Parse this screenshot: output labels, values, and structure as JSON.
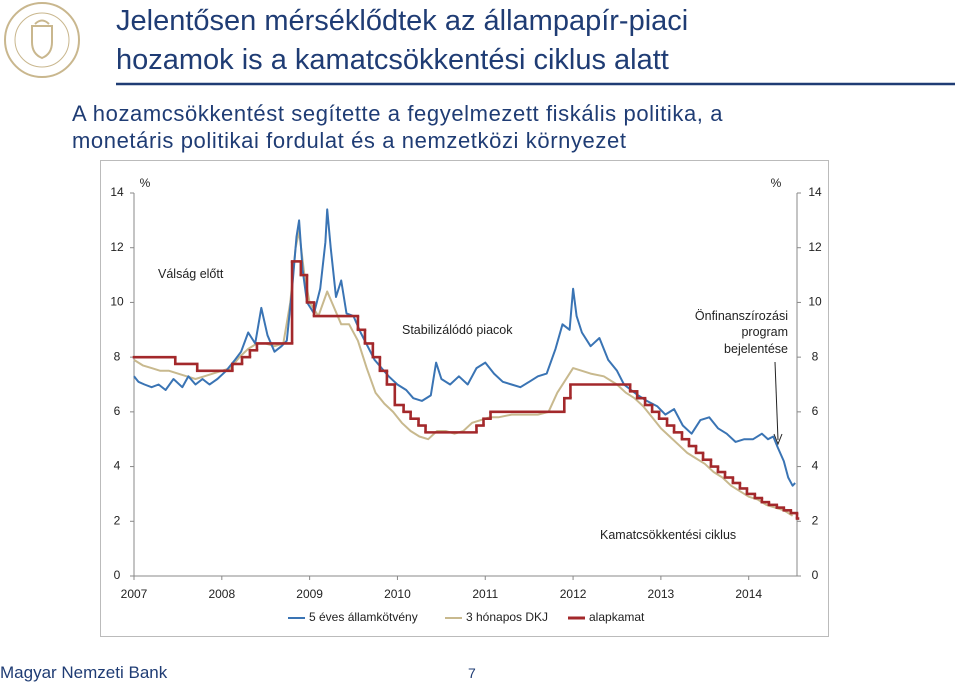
{
  "slide": {
    "title_lines": [
      "Jelentősen mérséklődtek az állampapír-piaci",
      "hozamok is a kamatcsökkentési ciklus alatt"
    ],
    "subtitle_lines": [
      "A hozamcsökkentést segítette a fegyelmezett fiskális politika, a",
      "monetáris politikai fordulat és a nemzetközi környezet"
    ],
    "footer": "Magyar Nemzeti Bank",
    "page_number": 7
  },
  "chart_data": {
    "type": "line",
    "y_unit": "%",
    "y2_unit": "%",
    "xlim": [
      2007,
      2014.55
    ],
    "xticks": [
      2007,
      2008,
      2009,
      2010,
      2011,
      2012,
      2013,
      2014
    ],
    "ylim": [
      0,
      14
    ],
    "yticks": [
      0,
      2,
      4,
      6,
      8,
      10,
      12,
      14
    ],
    "y2lim": [
      0,
      14
    ],
    "y2ticks": [
      0,
      2,
      4,
      6,
      8,
      10,
      12,
      14
    ],
    "grid": false,
    "annotations": [
      {
        "lines": [
          "Válság előtt"
        ]
      },
      {
        "lines": [
          "Stabilizálódó piacok"
        ]
      },
      {
        "lines": [
          "Önfinanszírozási",
          "program",
          "bejelentése"
        ]
      },
      {
        "lines": [
          "Kamatcsökkentési ciklus"
        ]
      }
    ],
    "series": [
      {
        "name": "5 éves államkötvény",
        "color": "#3a74b4",
        "step": false,
        "x": [
          2007.0,
          2007.05,
          2007.12,
          2007.2,
          2007.28,
          2007.36,
          2007.45,
          2007.55,
          2007.62,
          2007.7,
          2007.78,
          2007.86,
          2007.95,
          2008.05,
          2008.15,
          2008.22,
          2008.3,
          2008.38,
          2008.45,
          2008.52,
          2008.6,
          2008.68,
          2008.74,
          2008.8,
          2008.85,
          2008.88,
          2008.92,
          2008.97,
          2009.05,
          2009.12,
          2009.18,
          2009.2,
          2009.24,
          2009.3,
          2009.36,
          2009.42,
          2009.5,
          2009.58,
          2009.66,
          2009.74,
          2009.82,
          2009.9,
          2010.0,
          2010.1,
          2010.18,
          2010.28,
          2010.38,
          2010.44,
          2010.5,
          2010.6,
          2010.7,
          2010.8,
          2010.9,
          2011.0,
          2011.1,
          2011.2,
          2011.3,
          2011.4,
          2011.5,
          2011.6,
          2011.7,
          2011.8,
          2011.88,
          2011.96,
          2012.0,
          2012.04,
          2012.1,
          2012.2,
          2012.3,
          2012.4,
          2012.5,
          2012.58,
          2012.66,
          2012.74,
          2012.84,
          2012.96,
          2013.05,
          2013.15,
          2013.25,
          2013.35,
          2013.45,
          2013.55,
          2013.65,
          2013.75,
          2013.85,
          2013.95,
          2014.05,
          2014.15,
          2014.22,
          2014.28,
          2014.33,
          2014.4,
          2014.45,
          2014.5,
          2014.53
        ],
        "values": [
          7.3,
          7.1,
          7.0,
          6.9,
          7.0,
          6.8,
          7.2,
          6.9,
          7.3,
          7.0,
          7.2,
          7.0,
          7.2,
          7.5,
          7.9,
          8.2,
          8.9,
          8.5,
          9.8,
          8.8,
          8.2,
          8.4,
          8.6,
          10.5,
          12.4,
          13.0,
          11.2,
          10.0,
          9.6,
          10.5,
          12.2,
          13.4,
          12.0,
          10.2,
          10.8,
          9.6,
          9.5,
          8.9,
          8.4,
          7.9,
          7.6,
          7.3,
          7.0,
          6.8,
          6.5,
          6.4,
          6.6,
          7.8,
          7.2,
          7.0,
          7.3,
          7.0,
          7.6,
          7.8,
          7.4,
          7.1,
          7.0,
          6.9,
          7.1,
          7.3,
          7.4,
          8.3,
          9.2,
          9.0,
          10.5,
          9.5,
          8.9,
          8.4,
          8.7,
          7.9,
          7.5,
          7.0,
          6.8,
          6.6,
          6.4,
          6.2,
          5.9,
          6.1,
          5.5,
          5.2,
          5.7,
          5.8,
          5.4,
          5.2,
          4.9,
          5.0,
          5.0,
          5.2,
          5.0,
          5.1,
          4.7,
          4.2,
          3.6,
          3.3,
          3.4
        ]
      },
      {
        "name": "3 hónapos DKJ",
        "color": "#c8b98e",
        "step": false,
        "x": [
          2007.0,
          2007.1,
          2007.2,
          2007.3,
          2007.4,
          2007.5,
          2007.6,
          2007.7,
          2007.8,
          2007.9,
          2008.0,
          2008.1,
          2008.2,
          2008.3,
          2008.4,
          2008.5,
          2008.6,
          2008.7,
          2008.78,
          2008.84,
          2008.88,
          2008.94,
          2009.0,
          2009.1,
          2009.2,
          2009.28,
          2009.36,
          2009.45,
          2009.55,
          2009.65,
          2009.75,
          2009.85,
          2009.95,
          2010.05,
          2010.15,
          2010.25,
          2010.35,
          2010.45,
          2010.55,
          2010.65,
          2010.75,
          2010.85,
          2010.95,
          2011.05,
          2011.15,
          2011.3,
          2011.45,
          2011.6,
          2011.72,
          2011.82,
          2011.9,
          2012.0,
          2012.1,
          2012.2,
          2012.35,
          2012.5,
          2012.6,
          2012.7,
          2012.8,
          2012.9,
          2013.0,
          2013.1,
          2013.2,
          2013.3,
          2013.4,
          2013.5,
          2013.6,
          2013.7,
          2013.8,
          2013.9,
          2014.0,
          2014.1,
          2014.2,
          2014.3,
          2014.4,
          2014.5
        ],
        "values": [
          7.9,
          7.7,
          7.6,
          7.5,
          7.5,
          7.4,
          7.3,
          7.2,
          7.3,
          7.4,
          7.5,
          7.6,
          8.0,
          8.3,
          8.5,
          8.5,
          8.4,
          8.5,
          10.0,
          12.0,
          12.6,
          11.0,
          10.0,
          9.5,
          10.4,
          9.8,
          9.2,
          9.2,
          8.6,
          7.6,
          6.7,
          6.3,
          6.0,
          5.6,
          5.3,
          5.1,
          5.0,
          5.3,
          5.3,
          5.2,
          5.3,
          5.6,
          5.7,
          5.8,
          5.8,
          5.9,
          5.9,
          5.9,
          6.0,
          6.7,
          7.1,
          7.6,
          7.5,
          7.4,
          7.3,
          7.0,
          6.7,
          6.5,
          6.2,
          5.8,
          5.4,
          5.1,
          4.8,
          4.5,
          4.3,
          4.1,
          3.8,
          3.6,
          3.3,
          3.1,
          2.9,
          2.8,
          2.6,
          2.5,
          2.4,
          2.2
        ]
      },
      {
        "name": "alapkamat",
        "color": "#a3282b",
        "step": true,
        "x": [
          2007.0,
          2007.47,
          2007.72,
          2008.12,
          2008.23,
          2008.32,
          2008.4,
          2008.8,
          2008.9,
          2008.97,
          2009.05,
          2009.55,
          2009.63,
          2009.72,
          2009.8,
          2009.88,
          2009.97,
          2010.07,
          2010.15,
          2010.24,
          2010.32,
          2010.9,
          2010.98,
          2011.06,
          2011.9,
          2011.97,
          2012.65,
          2012.73,
          2012.82,
          2012.9,
          2012.98,
          2013.07,
          2013.15,
          2013.24,
          2013.32,
          2013.4,
          2013.48,
          2013.57,
          2013.65,
          2013.73,
          2013.82,
          2013.9,
          2013.98,
          2014.07,
          2014.15,
          2014.23,
          2014.32,
          2014.4,
          2014.48,
          2014.55
        ],
        "values": [
          8.0,
          7.75,
          7.5,
          7.75,
          8.0,
          8.25,
          8.5,
          11.5,
          11.0,
          10.0,
          9.5,
          9.0,
          8.5,
          8.0,
          7.5,
          7.0,
          6.25,
          6.0,
          5.75,
          5.5,
          5.25,
          5.5,
          5.75,
          6.0,
          6.5,
          7.0,
          6.75,
          6.5,
          6.25,
          6.0,
          5.75,
          5.5,
          5.25,
          5.0,
          4.75,
          4.5,
          4.25,
          4.0,
          3.8,
          3.6,
          3.4,
          3.2,
          3.0,
          2.85,
          2.7,
          2.6,
          2.5,
          2.4,
          2.3,
          2.1
        ]
      }
    ]
  }
}
